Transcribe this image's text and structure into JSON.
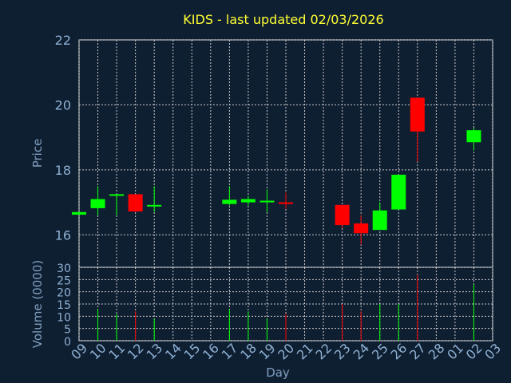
{
  "chart_data": {
    "type": "candlestick",
    "title": "KIDS - last updated 02/03/2026",
    "xlabel": "Day",
    "ylabel_price": "Price",
    "ylabel_volume": "Volume (0000)",
    "price_ylim": [
      15,
      22
    ],
    "price_yticks": [
      16,
      18,
      20,
      22
    ],
    "volume_ylim": [
      0,
      30
    ],
    "volume_yticks": [
      0,
      5,
      10,
      15,
      20,
      25,
      30
    ],
    "grid": true,
    "colors": {
      "up": "#00ff00",
      "down": "#ff0000",
      "background": "#0f1f32",
      "title": "#ffff33",
      "axis": "#8fb1d3"
    },
    "x_ticks": [
      "09",
      "10",
      "11",
      "12",
      "13",
      "14",
      "15",
      "16",
      "17",
      "18",
      "19",
      "20",
      "21",
      "22",
      "23",
      "24",
      "25",
      "26",
      "27",
      "28",
      "01",
      "02",
      "03"
    ],
    "candles": [
      {
        "x": 0,
        "open": 16.62,
        "high": 16.7,
        "low": 16.62,
        "close": 16.7,
        "volume": 0
      },
      {
        "x": 1,
        "open": 16.82,
        "high": 17.5,
        "low": 16.6,
        "close": 17.1,
        "volume": 13
      },
      {
        "x": 2,
        "open": 17.2,
        "high": 17.25,
        "low": 16.6,
        "close": 17.25,
        "volume": 11
      },
      {
        "x": 3,
        "open": 17.25,
        "high": 17.25,
        "low": 16.7,
        "close": 16.72,
        "volume": 12
      },
      {
        "x": 4,
        "open": 16.88,
        "high": 17.5,
        "low": 16.7,
        "close": 16.92,
        "volume": 9
      },
      {
        "x": 8,
        "open": 16.95,
        "high": 17.5,
        "low": 16.9,
        "close": 17.08,
        "volume": 13
      },
      {
        "x": 9,
        "open": 17.0,
        "high": 17.2,
        "low": 16.9,
        "close": 17.1,
        "volume": 12
      },
      {
        "x": 10,
        "open": 17.0,
        "high": 17.4,
        "low": 16.7,
        "close": 17.05,
        "volume": 9
      },
      {
        "x": 11,
        "open": 17.0,
        "high": 17.3,
        "low": 16.8,
        "close": 16.95,
        "volume": 11
      },
      {
        "x": 14,
        "open": 16.92,
        "high": 16.92,
        "low": 16.2,
        "close": 16.3,
        "volume": 15
      },
      {
        "x": 15,
        "open": 16.35,
        "high": 16.6,
        "low": 15.7,
        "close": 16.05,
        "volume": 12
      },
      {
        "x": 16,
        "open": 16.15,
        "high": 17.0,
        "low": 16.15,
        "close": 16.75,
        "volume": 15
      },
      {
        "x": 17,
        "open": 16.78,
        "high": 17.85,
        "low": 16.78,
        "close": 17.85,
        "volume": 15
      },
      {
        "x": 18,
        "open": 20.22,
        "high": 20.22,
        "low": 18.25,
        "close": 19.18,
        "volume": 27
      },
      {
        "x": 21,
        "open": 18.85,
        "high": 19.3,
        "low": 18.6,
        "close": 19.22,
        "volume": 23
      }
    ]
  }
}
